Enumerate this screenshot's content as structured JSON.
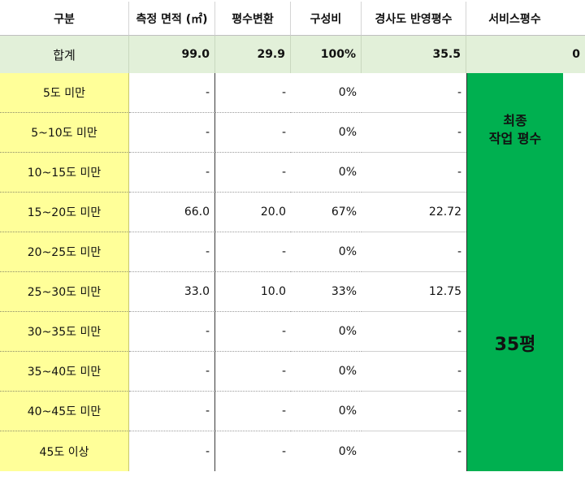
{
  "headers": [
    "구분",
    "측정 면적 (㎡)",
    "평수변환",
    "구성비",
    "경사도 반영평수",
    "서비스평수"
  ],
  "total": {
    "label": "합계",
    "area": "99.0",
    "pyeong": "29.9",
    "ratio": "100%",
    "slope_pyeong": "35.5",
    "service": "0"
  },
  "rows": [
    {
      "label": "5도 미만",
      "area": "-",
      "pyeong": "-",
      "ratio": "0%",
      "slope_pyeong": "-"
    },
    {
      "label": "5~10도 미만",
      "area": "-",
      "pyeong": "-",
      "ratio": "0%",
      "slope_pyeong": "-"
    },
    {
      "label": "10~15도 미만",
      "area": "-",
      "pyeong": "-",
      "ratio": "0%",
      "slope_pyeong": "-"
    },
    {
      "label": "15~20도 미만",
      "area": "66.0",
      "pyeong": "20.0",
      "ratio": "67%",
      "slope_pyeong": "22.72"
    },
    {
      "label": "20~25도 미만",
      "area": "-",
      "pyeong": "-",
      "ratio": "0%",
      "slope_pyeong": "-"
    },
    {
      "label": "25~30도 미만",
      "area": "33.0",
      "pyeong": "10.0",
      "ratio": "33%",
      "slope_pyeong": "12.75"
    },
    {
      "label": "30~35도 미만",
      "area": "-",
      "pyeong": "-",
      "ratio": "0%",
      "slope_pyeong": "-"
    },
    {
      "label": "35~40도 미만",
      "area": "-",
      "pyeong": "-",
      "ratio": "0%",
      "slope_pyeong": "-"
    },
    {
      "label": "40~45도 미만",
      "area": "-",
      "pyeong": "-",
      "ratio": "0%",
      "slope_pyeong": "-"
    },
    {
      "label": "45도 이상",
      "area": "-",
      "pyeong": "-",
      "ratio": "0%",
      "slope_pyeong": "-"
    }
  ],
  "final": {
    "title_line1": "최종",
    "title_line2": "작업 평수",
    "value": "35평"
  },
  "colors": {
    "header_total_bg": "#e2f0d9",
    "label_bg": "#ffff99",
    "final_bg": "#00b050"
  }
}
